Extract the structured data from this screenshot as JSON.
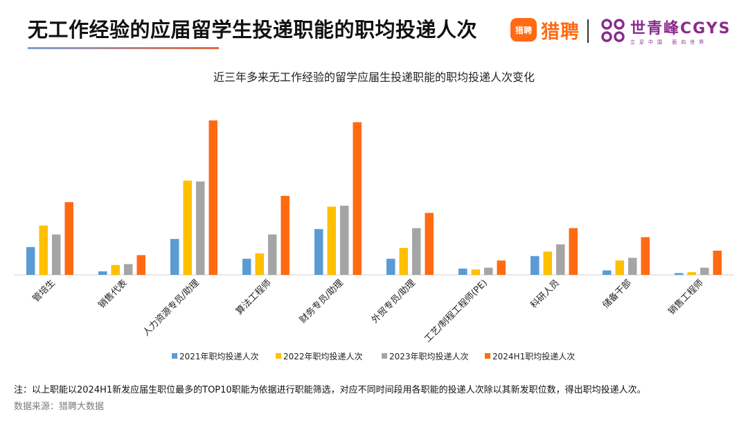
{
  "header": {
    "title": "无工作经验的应届留学生投递职能的职均投递人次",
    "logo_liepin": {
      "mark": "猎聘",
      "word": "猎聘"
    },
    "logo_cgys": {
      "name": "世青峰CGYS",
      "slogan": "立足中国 面向世界"
    }
  },
  "chart_data": {
    "type": "bar",
    "title": "近三年多来无工作经验的留学应届生投递职能的职均投递人次变化",
    "categories": [
      "管培生",
      "销售代表",
      "人力资源专员/助理",
      "算法工程师",
      "财务专员/助理",
      "外贸专员/助理",
      "工艺/制程工程师(PE)",
      "科研人员",
      "储备干部",
      "销售工程师"
    ],
    "series": [
      {
        "name": "2021年职均投递人次",
        "color": "#5b9bd5",
        "values": [
          31,
          4,
          40,
          18,
          51,
          18,
          7,
          21,
          5,
          2
        ]
      },
      {
        "name": "2022年职均投递人次",
        "color": "#ffc000",
        "values": [
          55,
          11,
          105,
          24,
          76,
          30,
          6,
          26,
          16,
          3
        ]
      },
      {
        "name": "2023年职均投递人次",
        "color": "#a5a5a5",
        "values": [
          45,
          12,
          104,
          45,
          77,
          52,
          8,
          34,
          19,
          8
        ]
      },
      {
        "name": "2024H1职均投递人次",
        "color": "#ff6a13",
        "values": [
          81,
          22,
          172,
          88,
          170,
          69,
          16,
          52,
          42,
          27
        ]
      }
    ],
    "ylim": [
      0,
      175
    ],
    "grid": false,
    "legend_position": "bottom"
  },
  "footer": {
    "note": "注：以上职能以2024H1新发应届生职位最多的TOP10职能为依据进行职能筛选，对应不同时间段用各职能的投递人次除以其新发职位数，得出职均投递人次。",
    "source": "数据来源：猎聘大数据"
  }
}
